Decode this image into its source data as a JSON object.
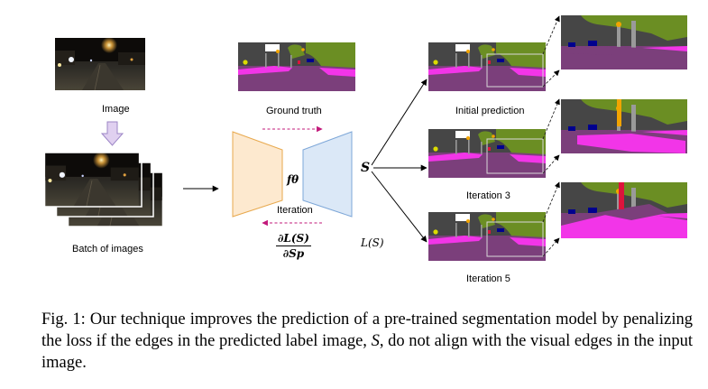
{
  "labels": {
    "image": "Image",
    "batch": "Batch of images",
    "ground_truth": "Ground truth",
    "iteration": "Iteration",
    "initial_prediction": "Initial prediction",
    "iteration3": "Iteration 3",
    "iteration5": "Iteration 5"
  },
  "math": {
    "f_theta": "fθ",
    "s": "S",
    "loss": "L(S)",
    "grad_num": "∂L(S)",
    "grad_den": "∂Sp"
  },
  "caption": {
    "fignum": "Fig. 1:",
    "part1": "Our technique improves the prediction of a pre-trained segmentation model by penalizing the loss if the edges in the predicted label image,",
    "symbol": "S",
    "part2": ", do not align with the visual edges in the input image."
  },
  "colors": {
    "encoder_fill": "#fde9cf",
    "encoder_stroke": "#e8a94e",
    "decoder_fill": "#dbe8f7",
    "decoder_stroke": "#7ea7d8",
    "iteration_arrow": "#c2187a",
    "batch_arrow_fill": "#e0d0f0",
    "batch_arrow_stroke": "#9c86c6",
    "road": "#7b3f7b",
    "sidewalk": "#f235e8",
    "vegetation": "#6b8e23",
    "building": "#464646",
    "sky": "#ffffff"
  }
}
